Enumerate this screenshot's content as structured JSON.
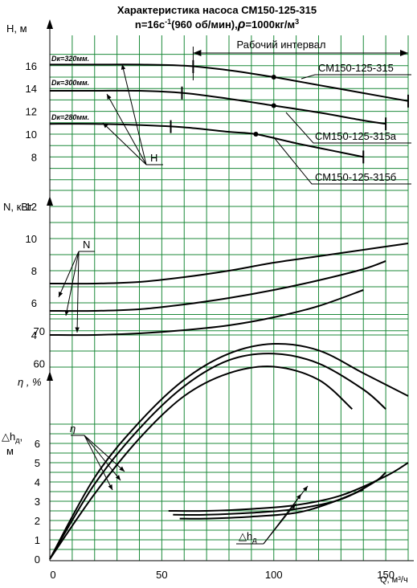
{
  "title": {
    "line1": "Характеристика насоса СМ150-125-315",
    "line2_a": "n=16с",
    "line2_sup": "-1",
    "line2_b": "(960 об/мин),",
    "line2_rho": "ρ",
    "line2_c": "=1000кг/м",
    "line2_sup2": "3"
  },
  "chart_data": {
    "type": "line",
    "x_axis": {
      "label": "Q, м³/ч",
      "range": [
        0,
        160
      ],
      "ticks": [
        0,
        50,
        100,
        150
      ]
    },
    "working_interval_label": "Рабочий интервал",
    "working_interval": [
      64,
      160
    ],
    "panels": [
      {
        "id": "head",
        "ylabel": "H, м",
        "ylim": [
          6,
          18
        ],
        "ticks": [
          6,
          8,
          10,
          12,
          14,
          16
        ],
        "tick_labels": [
          "",
          "8",
          "10",
          "12",
          "14",
          "16"
        ],
        "series": [
          {
            "name": "СМ150-125-315",
            "diameter": "Dк=320мм.",
            "x": [
              0,
              20,
              40,
              60,
              80,
              100,
              120,
              140,
              160
            ],
            "y": [
              16.1,
              16.1,
              16.1,
              16.0,
              15.6,
              15.0,
              14.3,
              13.6,
              12.9
            ],
            "interval": [
              64,
              160
            ],
            "point": [
              100,
              15.0
            ]
          },
          {
            "name": "СМ150-125-315а",
            "diameter": "Dк=300мм.",
            "x": [
              0,
              20,
              40,
              60,
              80,
              100,
              120,
              140,
              150
            ],
            "y": [
              13.8,
              13.8,
              13.8,
              13.6,
              13.1,
              12.5,
              11.9,
              11.2,
              10.9
            ],
            "interval": [
              59,
              150
            ],
            "point": [
              100,
              12.5
            ]
          },
          {
            "name": "СМ150-125-315б",
            "diameter": "Dк=280мм.",
            "x": [
              0,
              20,
              40,
              60,
              80,
              92,
              110,
              130,
              140
            ],
            "y": [
              10.9,
              10.9,
              10.8,
              10.6,
              10.2,
              10.0,
              9.2,
              8.4,
              8.0
            ],
            "interval": [
              54,
              140
            ],
            "point": [
              92,
              10.0
            ]
          }
        ],
        "annotation": "H"
      },
      {
        "id": "power",
        "ylabel": "N, кВт",
        "ylim": [
          2,
          14
        ],
        "ticks": [
          2,
          4,
          6,
          8,
          10,
          12
        ],
        "tick_labels": [
          "",
          "4",
          "6",
          "8",
          "10",
          "12"
        ],
        "series": [
          {
            "x": [
              0,
              20,
              40,
              60,
              80,
              100,
              120,
              140,
              160
            ],
            "y": [
              7.2,
              7.2,
              7.3,
              7.6,
              8.0,
              8.5,
              8.9,
              9.3,
              9.7
            ]
          },
          {
            "x": [
              0,
              20,
              40,
              60,
              80,
              100,
              120,
              140,
              150
            ],
            "y": [
              5.5,
              5.5,
              5.6,
              5.9,
              6.3,
              6.8,
              7.4,
              8.1,
              8.6
            ]
          },
          {
            "x": [
              0,
              20,
              40,
              60,
              80,
              100,
              120,
              140
            ],
            "y": [
              4.0,
              4.0,
              4.1,
              4.3,
              4.6,
              5.1,
              5.8,
              6.8
            ]
          }
        ],
        "annotation": "N"
      },
      {
        "id": "efficiency",
        "ylabel": "η , %",
        "ylim": [
          0,
          80
        ],
        "ticks": [
          0,
          10,
          20,
          30,
          40,
          50,
          60,
          70
        ],
        "tick_labels": [
          "",
          "",
          "",
          "",
          "",
          "",
          "60",
          "70"
        ],
        "series": [
          {
            "x": [
              0,
              20,
              40,
              60,
              80,
              100,
              120,
              140,
              160
            ],
            "y": [
              0,
              25,
              42,
              55,
              63,
              66,
              64,
              57,
              50
            ]
          },
          {
            "x": [
              0,
              20,
              40,
              60,
              80,
              100,
              120,
              140,
              150
            ],
            "y": [
              0,
              23,
              40,
              53,
              61,
              63,
              60,
              52,
              46
            ]
          },
          {
            "x": [
              0,
              20,
              40,
              60,
              80,
              100,
              120,
              135
            ],
            "y": [
              0,
              20,
              37,
              50,
              57,
              59,
              55,
              46
            ]
          }
        ],
        "annotation": "η"
      },
      {
        "id": "npsh",
        "ylabel_a": "△h",
        "ylabel_sub": "д",
        "ylabel_b": ",",
        "ylabel_unit": "м",
        "ylim": [
          0,
          7
        ],
        "ticks": [
          0,
          1,
          2,
          3,
          4,
          5,
          6
        ],
        "tick_labels": [
          "0",
          "1",
          "2",
          "3",
          "4",
          "5",
          "6"
        ],
        "series": [
          {
            "x": [
              53,
              70,
              90,
              110,
              130,
              150,
              160
            ],
            "y": [
              2.5,
              2.5,
              2.6,
              2.8,
              3.3,
              4.3,
              5.0
            ]
          },
          {
            "x": [
              55,
              70,
              90,
              110,
              130,
              145,
              150
            ],
            "y": [
              2.3,
              2.3,
              2.4,
              2.6,
              3.1,
              4.0,
              4.5
            ]
          },
          {
            "x": [
              58,
              70,
              90,
              110,
              125,
              140
            ],
            "y": [
              2.1,
              2.1,
              2.2,
              2.4,
              2.9,
              3.6
            ]
          }
        ],
        "annotation_a": "△h",
        "annotation_sub": "д"
      }
    ]
  },
  "colors": {
    "grid": "#1c8a3a",
    "curve": "#000000",
    "background": "#ffffff"
  }
}
